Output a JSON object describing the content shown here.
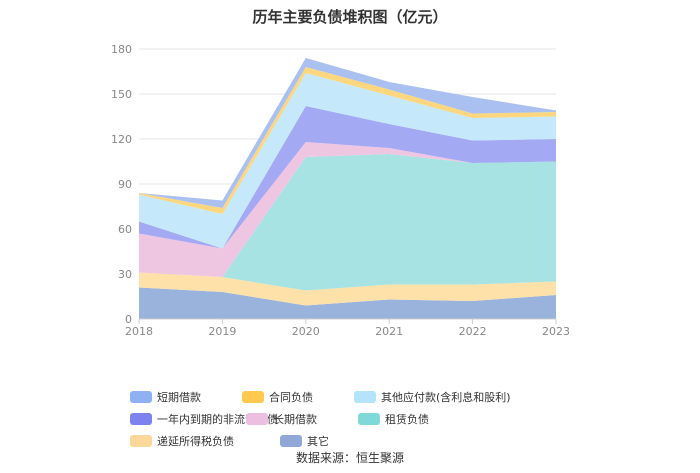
{
  "chart_data": {
    "type": "area",
    "stacked": true,
    "title": "历年主要负债堆积图（亿元）",
    "x": [
      "2018",
      "2019",
      "2020",
      "2021",
      "2022",
      "2023"
    ],
    "ylim": [
      0,
      180
    ],
    "yticks": [
      0,
      30,
      60,
      90,
      120,
      150,
      180
    ],
    "grid": true,
    "legend_position": "bottom",
    "series": [
      {
        "name": "其它",
        "color": "#9ab3dd",
        "values": [
          21,
          18,
          9,
          13,
          12,
          16
        ]
      },
      {
        "name": "递延所得税负债",
        "color": "#fde1a8",
        "values": [
          10,
          10,
          10,
          10,
          11,
          9
        ]
      },
      {
        "name": "租赁负债",
        "color": "#a7e3e3",
        "values": [
          0,
          0,
          89,
          87,
          81,
          80
        ]
      },
      {
        "name": "长期借款",
        "color": "#efc6e2",
        "values": [
          26,
          19,
          10,
          4,
          0,
          0
        ]
      },
      {
        "name": "一年内到期的非流动负债",
        "color": "#a3a9f3",
        "values": [
          8,
          0,
          24,
          16,
          15,
          15
        ]
      },
      {
        "name": "其他应付款(含利息和股利)",
        "color": "#c5e8fb",
        "values": [
          18,
          23,
          22,
          19,
          15,
          15
        ]
      },
      {
        "name": "合同负债",
        "color": "#fdd67e",
        "values": [
          1,
          4,
          4,
          4,
          3,
          3
        ]
      },
      {
        "name": "短期借款",
        "color": "#a9c0f0",
        "values": [
          0,
          5,
          6,
          5,
          11,
          1
        ]
      }
    ]
  },
  "legend": [
    {
      "label": "短期借款",
      "color": "#8fb0f2"
    },
    {
      "label": "合同负债",
      "color": "#fec94d"
    },
    {
      "label": "其他应付款(含利息和股利)",
      "color": "#b4e3fb"
    },
    {
      "label": "一年内到期的非流动负债",
      "color": "#7d82ef"
    },
    {
      "label": "长期借款",
      "color": "#ecbfe0"
    },
    {
      "label": "租赁负债",
      "color": "#7fd9d9"
    },
    {
      "label": "递延所得税负债",
      "color": "#fcd79a"
    },
    {
      "label": "其它",
      "color": "#8fa8d8"
    }
  ],
  "source": "数据来源：恒生聚源"
}
